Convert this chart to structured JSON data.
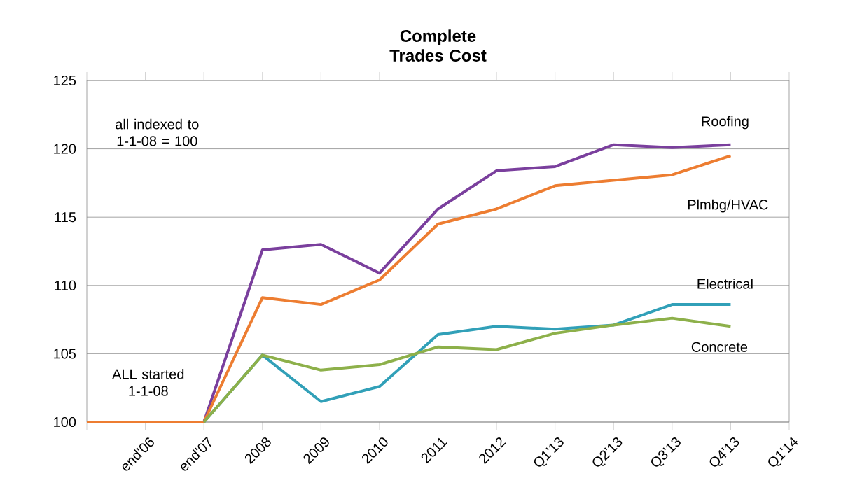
{
  "chart_data": {
    "type": "line",
    "title": "Complete Trades Cost",
    "categories": [
      null,
      "end'06",
      "end'07",
      "2008",
      "2009",
      "2010",
      "2011",
      "2012",
      "Q1'13",
      "Q2'13",
      "Q3'13",
      "Q4'13",
      "Q1'14"
    ],
    "series": [
      {
        "name": "Roofing",
        "color": "#7a3f9d",
        "values": [
          null,
          null,
          100,
          112.6,
          113.0,
          110.9,
          115.6,
          118.4,
          118.7,
          120.3,
          120.1,
          120.3,
          null
        ]
      },
      {
        "name": "Plmbg/HVAC",
        "color": "#ed7d31",
        "values": [
          100,
          100,
          100,
          109.1,
          108.6,
          110.4,
          114.5,
          115.6,
          117.3,
          117.7,
          118.1,
          119.5,
          null
        ]
      },
      {
        "name": "Electrical",
        "color": "#31a0b8",
        "values": [
          null,
          null,
          100,
          104.9,
          101.5,
          102.6,
          106.4,
          107.0,
          106.8,
          107.1,
          108.6,
          108.6,
          null
        ]
      },
      {
        "name": "Concrete",
        "color": "#8db04a",
        "values": [
          null,
          null,
          100,
          104.9,
          103.8,
          104.2,
          105.5,
          105.3,
          106.5,
          107.1,
          107.6,
          107.0,
          null
        ]
      }
    ],
    "ylim": [
      100,
      125
    ],
    "yticks": [
      100,
      105,
      110,
      115,
      120,
      125
    ],
    "grid": "y",
    "legend": false,
    "marker": "none",
    "line_style": "solid",
    "annotations": [
      "all indexed to 1-1-08 = 100",
      "ALL started 1-1-08"
    ]
  }
}
